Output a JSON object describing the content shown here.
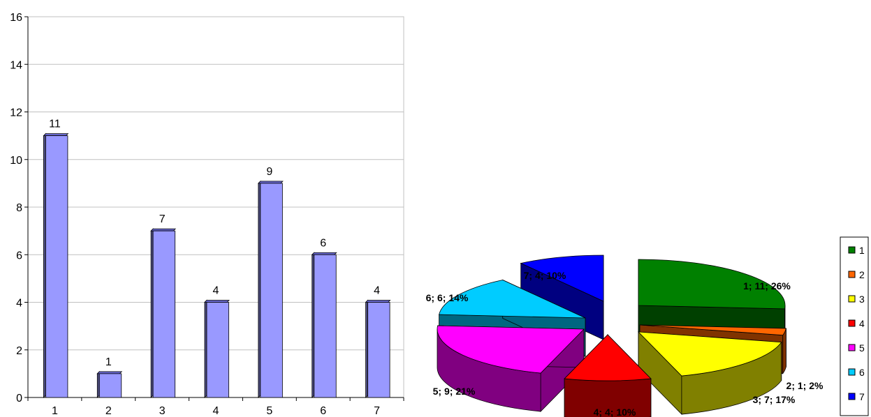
{
  "chart_data": [
    {
      "type": "bar",
      "categories": [
        "1",
        "2",
        "3",
        "4",
        "5",
        "6",
        "7"
      ],
      "values": [
        11,
        1,
        7,
        4,
        9,
        6,
        4
      ],
      "data_labels": [
        "11",
        "1",
        "7",
        "4",
        "9",
        "6",
        "4"
      ],
      "ylim": [
        0,
        16
      ],
      "yticks": [
        "0",
        "2",
        "4",
        "6",
        "8",
        "10",
        "12",
        "14",
        "16"
      ],
      "grid": true,
      "bar_color": "#9999ff",
      "title": "",
      "xlabel": "",
      "ylabel": ""
    },
    {
      "type": "pie",
      "categories": [
        "1",
        "2",
        "3",
        "4",
        "5",
        "6",
        "7"
      ],
      "values": [
        11,
        1,
        7,
        4,
        9,
        6,
        4
      ],
      "labels": [
        "1; 11; 26%",
        "2; 1; 2%",
        "3; 7; 17%",
        "4; 4; 10%",
        "5; 9; 21%",
        "6; 6; 14%",
        "7; 4; 10%"
      ],
      "colors": [
        "#008000",
        "#ff6600",
        "#ffff00",
        "#ff0000",
        "#ff00ff",
        "#00ccff",
        "#0000ff"
      ],
      "legend": "right",
      "title": ""
    }
  ]
}
